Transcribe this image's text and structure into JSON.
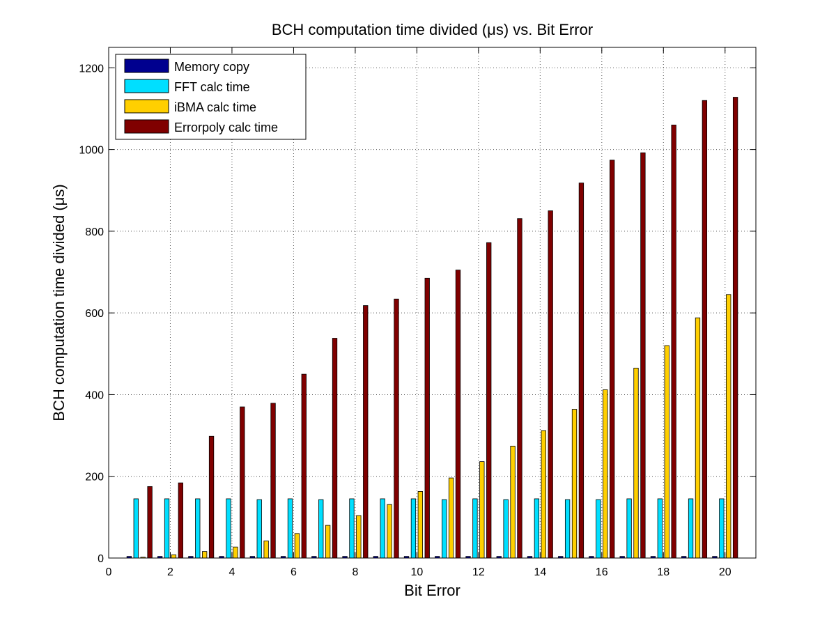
{
  "chart_data": {
    "type": "bar",
    "title": "BCH computation time divided (μs) vs. Bit Error",
    "xlabel": "Bit Error",
    "ylabel": "BCH computation time divided (μs)",
    "xlim": [
      0,
      21
    ],
    "ylim": [
      0,
      1250
    ],
    "xticks": [
      0,
      2,
      4,
      6,
      8,
      10,
      12,
      14,
      16,
      18,
      20
    ],
    "yticks": [
      0,
      200,
      400,
      600,
      800,
      1000,
      1200
    ],
    "grid": true,
    "legend_position": "top-left",
    "categories": [
      1,
      2,
      3,
      4,
      5,
      6,
      7,
      8,
      9,
      10,
      11,
      12,
      13,
      14,
      15,
      16,
      17,
      18,
      19,
      20
    ],
    "series": [
      {
        "name": "Memory copy",
        "color": "#00008F",
        "values": [
          4,
          4,
          4,
          4,
          4,
          4,
          4,
          4,
          4,
          4,
          4,
          4,
          4,
          4,
          4,
          4,
          4,
          4,
          4,
          4
        ]
      },
      {
        "name": "FFT calc time",
        "color": "#00DFFF",
        "values": [
          145,
          145,
          145,
          145,
          143,
          145,
          143,
          145,
          145,
          145,
          143,
          145,
          143,
          145,
          143,
          143,
          145,
          145,
          145,
          145
        ]
      },
      {
        "name": "iBMA calc time",
        "color": "#FFCF00",
        "values": [
          2,
          8,
          16,
          27,
          42,
          60,
          80,
          104,
          131,
          163,
          196,
          236,
          274,
          312,
          364,
          412,
          465,
          520,
          588,
          645
        ]
      },
      {
        "name": "Errorpoly calc time",
        "color": "#800000",
        "values": [
          175,
          184,
          298,
          370,
          379,
          450,
          538,
          618,
          634,
          685,
          705,
          772,
          831,
          850,
          918,
          974,
          992,
          1060,
          1120,
          1128
        ]
      }
    ]
  }
}
